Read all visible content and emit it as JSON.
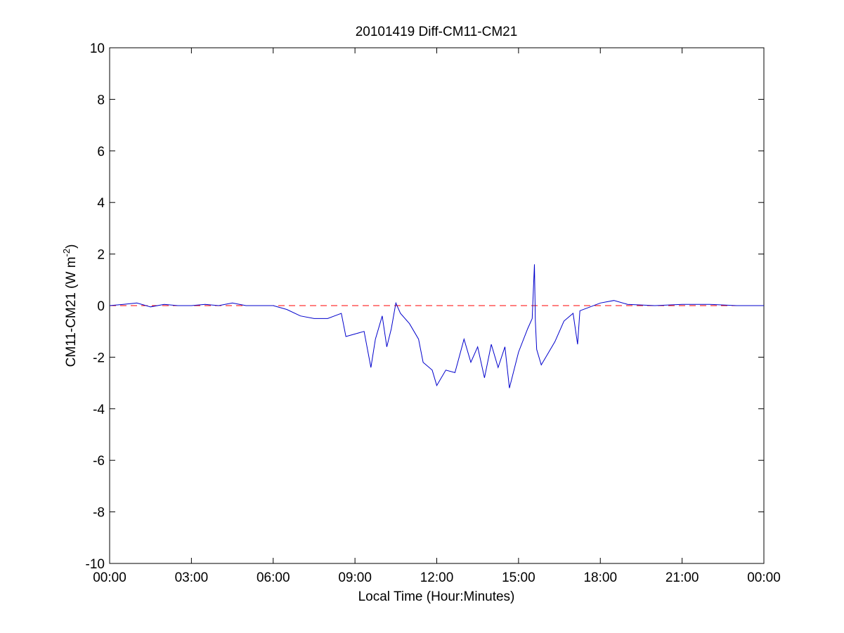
{
  "chart_data": {
    "type": "line",
    "title": "20101419 Diff-CM11-CM21",
    "xlabel": "Local Time (Hour:Minutes)",
    "ylabel_main": "CM11-CM21 (W m",
    "ylabel_sup": "-2",
    "ylabel_end": ")",
    "xlim": [
      "00:00",
      "24:00"
    ],
    "ylim": [
      -10,
      10
    ],
    "x_ticks": [
      "00:00",
      "03:00",
      "06:00",
      "09:00",
      "12:00",
      "15:00",
      "18:00",
      "21:00",
      "00:00"
    ],
    "y_ticks": [
      "10",
      "8",
      "6",
      "4",
      "2",
      "0",
      "-2",
      "-4",
      "-6",
      "-8",
      "-10"
    ],
    "reference_line": {
      "y": 0,
      "style": "dashed",
      "color": "#ff0000"
    },
    "series": [
      {
        "color": "#0000cc",
        "x": [
          "00:00",
          "00:30",
          "01:00",
          "01:30",
          "02:00",
          "02:30",
          "03:00",
          "03:30",
          "04:00",
          "04:30",
          "05:00",
          "05:30",
          "06:00",
          "06:30",
          "07:00",
          "07:30",
          "08:00",
          "08:15",
          "08:30",
          "08:40",
          "09:00",
          "09:20",
          "09:35",
          "09:45",
          "10:00",
          "10:10",
          "10:20",
          "10:30",
          "10:40",
          "11:00",
          "11:20",
          "11:30",
          "11:50",
          "12:00",
          "12:20",
          "12:40",
          "13:00",
          "13:15",
          "13:30",
          "13:45",
          "14:00",
          "14:15",
          "14:30",
          "14:40",
          "15:00",
          "15:20",
          "15:30",
          "15:35",
          "15:37",
          "15:40",
          "15:50",
          "16:00",
          "16:20",
          "16:40",
          "17:00",
          "17:10",
          "17:15",
          "17:30",
          "18:00",
          "18:30",
          "19:00",
          "20:00",
          "21:00",
          "22:00",
          "23:00",
          "24:00"
        ],
        "y": [
          0.0,
          0.05,
          0.1,
          -0.05,
          0.05,
          0.0,
          0.0,
          0.05,
          0.0,
          0.1,
          0.0,
          0.0,
          0.0,
          -0.15,
          -0.4,
          -0.5,
          -0.5,
          -0.4,
          -0.3,
          -1.2,
          -1.1,
          -1.0,
          -2.4,
          -1.3,
          -0.4,
          -1.6,
          -0.9,
          0.1,
          -0.3,
          -0.7,
          -1.3,
          -2.2,
          -2.5,
          -3.1,
          -2.5,
          -2.6,
          -1.3,
          -2.2,
          -1.6,
          -2.8,
          -1.5,
          -2.4,
          -1.6,
          -3.2,
          -1.8,
          -0.9,
          -0.5,
          1.6,
          -0.6,
          -1.7,
          -2.3,
          -2.0,
          -1.4,
          -0.6,
          -0.3,
          -1.5,
          -0.2,
          -0.1,
          0.1,
          0.2,
          0.05,
          0.0,
          0.05,
          0.05,
          0.0,
          0.0
        ]
      }
    ]
  }
}
